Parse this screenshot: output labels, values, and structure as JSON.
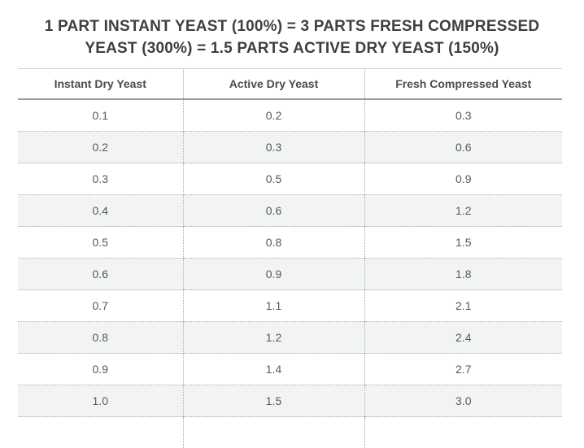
{
  "title": {
    "line1": "1 PART INSTANT YEAST (100%) = 3 PARTS FRESH COMPRESSED",
    "line2": "YEAST (300%) = 1.5 PARTS ACTIVE DRY YEAST (150%)"
  },
  "chart_data": {
    "type": "table",
    "title": "1 PART INSTANT YEAST (100%) = 3 PARTS FRESH COMPRESSED YEAST (300%) = 1.5 PARTS ACTIVE DRY YEAST (150%)",
    "columns": [
      "Instant Dry Yeast",
      "Active Dry Yeast",
      "Fresh Compressed Yeast"
    ],
    "rows": [
      [
        "0.1",
        "0.2",
        "0.3"
      ],
      [
        "0.2",
        "0.3",
        "0.6"
      ],
      [
        "0.3",
        "0.5",
        "0.9"
      ],
      [
        "0.4",
        "0.6",
        "1.2"
      ],
      [
        "0.5",
        "0.8",
        "1.5"
      ],
      [
        "0.6",
        "0.9",
        "1.8"
      ],
      [
        "0.7",
        "1.1",
        "2.1"
      ],
      [
        "0.8",
        "1.2",
        "2.4"
      ],
      [
        "0.9",
        "1.4",
        "2.7"
      ],
      [
        "1.0",
        "1.5",
        "3.0"
      ]
    ],
    "layout_hints": {
      "striped_rows": "even rows shaded",
      "header_divider": "solid",
      "inner_borders": "dotted",
      "bottom_row_clipped": true
    }
  },
  "colors": {
    "stripe": "#f1f4f3",
    "border_dotted": "#a7acaa",
    "border_light": "#ccd0ce",
    "border_strong": "#979b99",
    "title_text": "#3d403f",
    "cell_text": "#565a58"
  }
}
